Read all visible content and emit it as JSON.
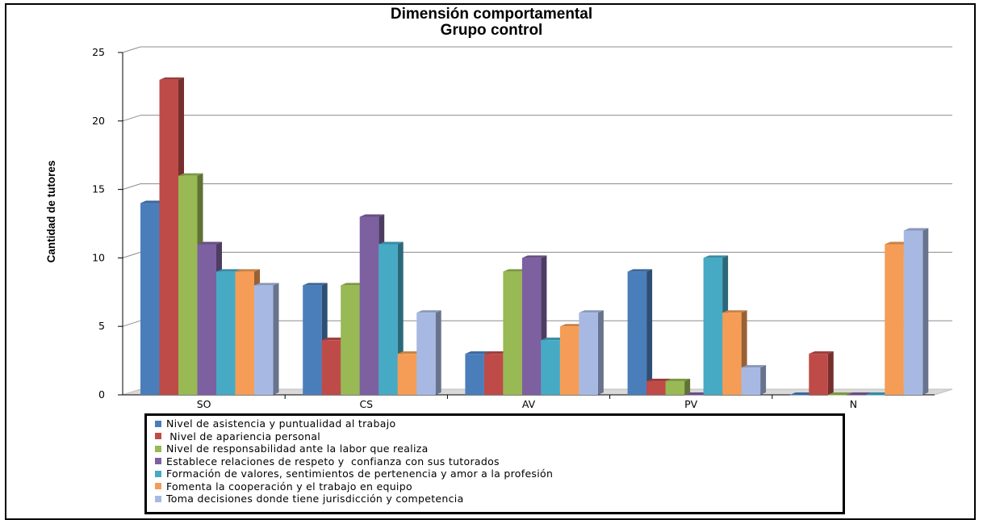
{
  "chart_data": {
    "type": "bar",
    "title": "Dimensión comportamental",
    "subtitle": "Grupo control",
    "ylabel": "Cantidad de tutores",
    "xlabel": "",
    "ylim": [
      0,
      25
    ],
    "yticks": [
      0,
      5,
      10,
      15,
      20,
      25
    ],
    "grid": true,
    "legend_position": "bottom",
    "categories": [
      "SO",
      "CS",
      "AV",
      "PV",
      "N"
    ],
    "series": [
      {
        "name": "Nivel de asistencia y puntualidad al trabajo",
        "color": "#4A7EBB",
        "values": [
          14,
          8,
          3,
          9,
          0
        ]
      },
      {
        "name": " Nivel de apariencia personal",
        "color": "#BE4B48",
        "values": [
          23,
          4,
          3,
          1,
          3
        ]
      },
      {
        "name": "Nivel de responsabilidad ante la labor que realiza",
        "color": "#98B954",
        "values": [
          16,
          8,
          9,
          1,
          0
        ]
      },
      {
        "name": "Establece relaciones de respeto y  confianza con sus tutorados",
        "color": "#7D60A0",
        "values": [
          11,
          13,
          10,
          0,
          0
        ]
      },
      {
        "name": "Formación de valores, sentimientos de pertenencia y amor a la profesión",
        "color": "#46AAC5",
        "values": [
          9,
          11,
          4,
          10,
          0
        ]
      },
      {
        "name": "Fomenta la cooperación y el trabajo en equipo",
        "color": "#F59D56",
        "values": [
          9,
          3,
          5,
          6,
          11
        ]
      },
      {
        "name": "Toma decisiones donde tiene jurisdicción y competencia",
        "color": "#A7B9E3",
        "values": [
          8,
          6,
          6,
          2,
          12
        ]
      }
    ]
  }
}
